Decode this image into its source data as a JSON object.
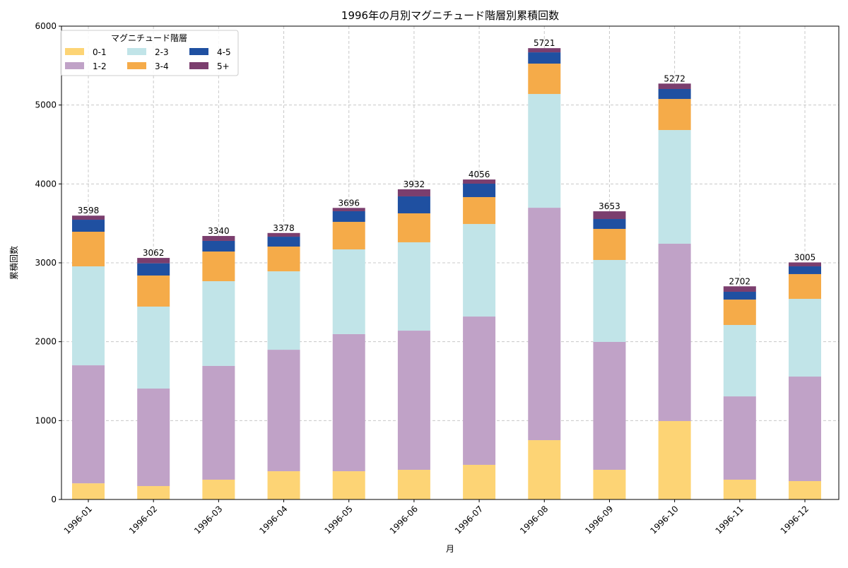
{
  "chart_data": {
    "type": "bar",
    "stacked": true,
    "title": "1996年の月別マグニチュード階層別累積回数",
    "xlabel": "月",
    "ylabel": "累積回数",
    "ylim": [
      0,
      6000
    ],
    "yticks": [
      0,
      1000,
      2000,
      3000,
      4000,
      5000,
      6000
    ],
    "grid": true,
    "legend": {
      "title": "マグニチュード階層",
      "placement": "top-left",
      "columns": 3
    },
    "categories": [
      "1996-01",
      "1996-02",
      "1996-03",
      "1996-04",
      "1996-05",
      "1996-06",
      "1996-07",
      "1996-08",
      "1996-09",
      "1996-10",
      "1996-11",
      "1996-12"
    ],
    "series": [
      {
        "name": "0-1",
        "color": "#fdd475",
        "values": [
          205,
          170,
          251,
          358,
          358,
          376,
          439,
          752,
          376,
          994,
          251,
          233
        ]
      },
      {
        "name": "1-2",
        "color": "#c0a2c7",
        "values": [
          1496,
          1236,
          1442,
          1540,
          1738,
          1764,
          1880,
          2946,
          1621,
          2248,
          1056,
          1325
        ]
      },
      {
        "name": "2-3",
        "color": "#c1e4e8",
        "values": [
          1254,
          1039,
          1074,
          994,
          1074,
          1120,
          1173,
          1442,
          1039,
          1441,
          905,
          985
        ]
      },
      {
        "name": "3-4",
        "color": "#f5ab49",
        "values": [
          439,
          394,
          376,
          314,
          349,
          367,
          341,
          385,
          394,
          394,
          322,
          314
        ]
      },
      {
        "name": "4-5",
        "color": "#1f50a1",
        "values": [
          152,
          155,
          135,
          125,
          135,
          215,
          170,
          143,
          125,
          126,
          99,
          98
        ]
      },
      {
        "name": "5+",
        "color": "#7b3e6e",
        "values": [
          52,
          68,
          62,
          47,
          42,
          90,
          53,
          53,
          98,
          69,
          69,
          50
        ]
      }
    ],
    "totals": [
      3598,
      3062,
      3340,
      3378,
      3696,
      3932,
      4056,
      5721,
      3653,
      5272,
      2702,
      3005
    ]
  }
}
